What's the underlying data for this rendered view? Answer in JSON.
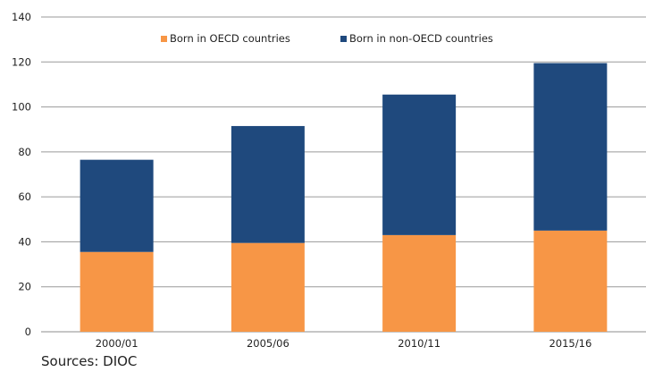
{
  "chart_data": {
    "type": "bar",
    "stacked": true,
    "categories": [
      "2000/01",
      "2005/06",
      "2010/11",
      "2015/16"
    ],
    "series": [
      {
        "name": "Born in OECD countries",
        "color": "#F79646",
        "values": [
          35.5,
          39.5,
          43,
          45
        ]
      },
      {
        "name": "Born in non-OECD countries",
        "color": "#1F497D",
        "values": [
          41,
          52,
          62.5,
          74.5
        ]
      }
    ],
    "ylim": [
      0,
      140
    ],
    "yticks": [
      0,
      20,
      40,
      60,
      80,
      100,
      120,
      140
    ],
    "grid": "horizontal",
    "legend_position": "top"
  },
  "source": "Sources: DIOC"
}
